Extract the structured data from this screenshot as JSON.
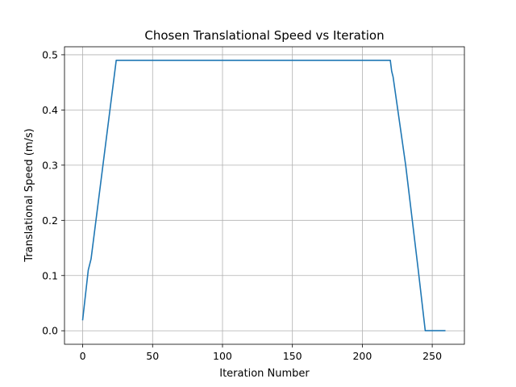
{
  "chart_data": {
    "type": "line",
    "title": "Chosen Translational Speed vs Iteration",
    "xlabel": "Iteration Number",
    "ylabel": "Translational Speed (m/s)",
    "xlim": [
      -13,
      273
    ],
    "ylim": [
      -0.0245,
      0.5145
    ],
    "xticks": [
      0,
      50,
      100,
      150,
      200,
      250
    ],
    "yticks": [
      0.0,
      0.1,
      0.2,
      0.3,
      0.4,
      0.5
    ],
    "xtick_labels": [
      "0",
      "50",
      "100",
      "150",
      "200",
      "250"
    ],
    "ytick_labels": [
      "0.0",
      "0.1",
      "0.2",
      "0.3",
      "0.4",
      "0.5"
    ],
    "grid": true,
    "line_color": "#1f77b4",
    "series": [
      {
        "x": [
          0,
          4,
          5,
          6,
          24,
          220,
          221,
          222,
          231,
          240,
          245,
          259
        ],
        "y": [
          0.02,
          0.11,
          0.12,
          0.13,
          0.49,
          0.49,
          0.47,
          0.46,
          0.3,
          0.11,
          0.0,
          0.0
        ]
      }
    ]
  }
}
